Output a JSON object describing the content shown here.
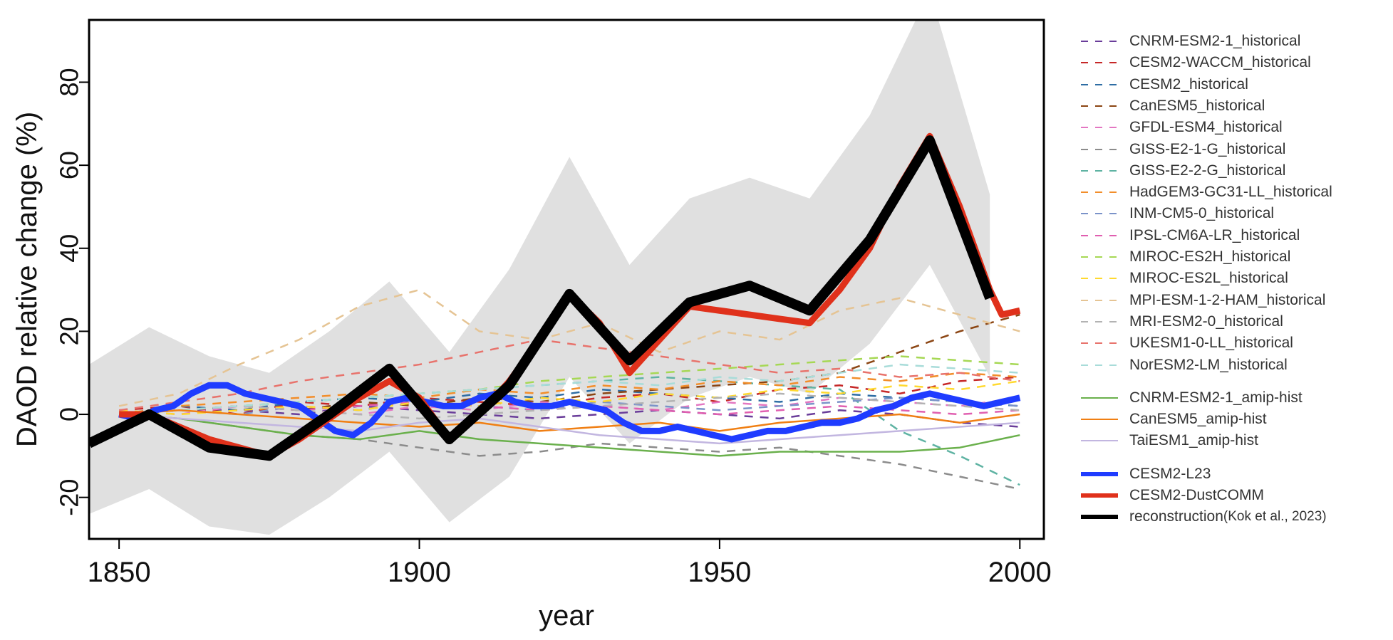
{
  "chart_data": {
    "type": "line",
    "title": "",
    "xlabel": "year",
    "ylabel": "DAOD relative change (%)",
    "xlim": [
      1845,
      2004
    ],
    "ylim": [
      -30,
      95
    ],
    "xticks": [
      1850,
      1900,
      1950,
      2000
    ],
    "yticks": [
      -20,
      0,
      20,
      40,
      60,
      80
    ],
    "grid": false,
    "legend_position": "right",
    "band": {
      "color": "#e0e0e0",
      "x": [
        1845,
        1855,
        1865,
        1875,
        1885,
        1895,
        1905,
        1915,
        1925,
        1935,
        1945,
        1955,
        1965,
        1975,
        1985,
        1995
      ],
      "upper": [
        12,
        21,
        14,
        10,
        20,
        32,
        15,
        35,
        62,
        36,
        52,
        57,
        52,
        72,
        102,
        53
      ],
      "lower": [
        -24,
        -18,
        -27,
        -29,
        -20,
        -9,
        -26,
        -15,
        9,
        -7,
        4,
        9,
        5,
        17,
        36,
        9
      ]
    },
    "series": [
      {
        "name": "CNRM-ESM2-1_historical",
        "color": "#6a3d9a",
        "style": "dashed",
        "x": [
          1850,
          1860,
          1870,
          1880,
          1890,
          1900,
          1910,
          1920,
          1930,
          1940,
          1950,
          1960,
          1970,
          1980,
          1990,
          2000
        ],
        "y": [
          0,
          1,
          1,
          0,
          2,
          1,
          0,
          -1,
          0,
          1,
          0,
          -1,
          1,
          0,
          -2,
          -3
        ]
      },
      {
        "name": "CESM2-WACCM_historical",
        "color": "#c62828",
        "style": "dashed",
        "x": [
          1850,
          1860,
          1870,
          1880,
          1890,
          1900,
          1910,
          1920,
          1930,
          1940,
          1950,
          1960,
          1970,
          1980,
          1990,
          2000
        ],
        "y": [
          1,
          2,
          0,
          3,
          2,
          4,
          3,
          2,
          4,
          5,
          3,
          6,
          7,
          5,
          8,
          9
        ]
      },
      {
        "name": "CESM2_historical",
        "color": "#2e6da4",
        "style": "dashed",
        "x": [
          1850,
          1860,
          1870,
          1880,
          1890,
          1900,
          1910,
          1920,
          1930,
          1940,
          1950,
          1960,
          1970,
          1980,
          1990,
          2000
        ],
        "y": [
          0,
          2,
          1,
          3,
          4,
          3,
          5,
          4,
          6,
          5,
          4,
          3,
          5,
          4,
          3,
          2
        ]
      },
      {
        "name": "CanESM5_historical",
        "color": "#8b4513",
        "style": "dashed",
        "x": [
          1850,
          1860,
          1870,
          1880,
          1890,
          1900,
          1910,
          1920,
          1930,
          1940,
          1950,
          1960,
          1970,
          1980,
          1990,
          2000
        ],
        "y": [
          0,
          1,
          2,
          1,
          3,
          2,
          4,
          3,
          5,
          6,
          7,
          8,
          10,
          15,
          20,
          24
        ]
      },
      {
        "name": "GFDL-ESM4_historical",
        "color": "#e377c2",
        "style": "dashed",
        "x": [
          1850,
          1860,
          1870,
          1880,
          1890,
          1900,
          1910,
          1920,
          1930,
          1940,
          1950,
          1960,
          1970,
          1980,
          1990,
          2000
        ],
        "y": [
          1,
          0,
          2,
          1,
          0,
          2,
          1,
          3,
          2,
          1,
          3,
          2,
          4,
          3,
          2,
          4
        ]
      },
      {
        "name": "GISS-E2-1-G_historical",
        "color": "#8c8c8c",
        "style": "dashed",
        "x": [
          1850,
          1860,
          1870,
          1880,
          1890,
          1900,
          1910,
          1920,
          1930,
          1940,
          1950,
          1960,
          1970,
          1980,
          1990,
          2000
        ],
        "y": [
          0,
          -1,
          -3,
          -5,
          -6,
          -8,
          -10,
          -9,
          -7,
          -8,
          -9,
          -8,
          -10,
          -12,
          -15,
          -18
        ]
      },
      {
        "name": "GISS-E2-2-G_historical",
        "color": "#5fb3a3",
        "style": "dashed",
        "x": [
          1850,
          1860,
          1870,
          1880,
          1890,
          1900,
          1910,
          1920,
          1930,
          1940,
          1950,
          1960,
          1970,
          1980,
          1990,
          2000
        ],
        "y": [
          0,
          1,
          2,
          3,
          4,
          5,
          6,
          7,
          8,
          9,
          8,
          7,
          6,
          -4,
          -10,
          -17
        ]
      },
      {
        "name": "HadGEM3-GC31-LL_historical",
        "color": "#f28e2b",
        "style": "dashed",
        "x": [
          1850,
          1860,
          1870,
          1880,
          1890,
          1900,
          1910,
          1920,
          1930,
          1940,
          1950,
          1960,
          1970,
          1980,
          1990,
          2000
        ],
        "y": [
          0,
          2,
          3,
          4,
          5,
          4,
          6,
          5,
          7,
          6,
          8,
          7,
          9,
          8,
          10,
          9
        ]
      },
      {
        "name": "INM-CM5-0_historical",
        "color": "#7b93c9",
        "style": "dashed",
        "x": [
          1850,
          1860,
          1870,
          1880,
          1890,
          1900,
          1910,
          1920,
          1930,
          1940,
          1950,
          1960,
          1970,
          1980,
          1990,
          2000
        ],
        "y": [
          0,
          1,
          0,
          2,
          1,
          3,
          2,
          1,
          3,
          2,
          1,
          2,
          3,
          4,
          3,
          2
        ]
      },
      {
        "name": "IPSL-CM6A-LR_historical",
        "color": "#e05fb0",
        "style": "dashed",
        "x": [
          1850,
          1860,
          1870,
          1880,
          1890,
          1900,
          1910,
          1920,
          1930,
          1940,
          1950,
          1960,
          1970,
          1980,
          1990,
          2000
        ],
        "y": [
          0,
          1,
          2,
          1,
          2,
          3,
          2,
          1,
          2,
          1,
          0,
          1,
          2,
          1,
          0,
          1
        ]
      },
      {
        "name": "MIROC-ES2H_historical",
        "color": "#a6d854",
        "style": "dashed",
        "x": [
          1850,
          1860,
          1870,
          1880,
          1890,
          1900,
          1910,
          1920,
          1930,
          1940,
          1950,
          1960,
          1970,
          1980,
          1990,
          2000
        ],
        "y": [
          0,
          1,
          2,
          3,
          4,
          5,
          6,
          8,
          9,
          10,
          11,
          12,
          13,
          14,
          13,
          12
        ]
      },
      {
        "name": "MIROC-ES2L_historical",
        "color": "#ffd92f",
        "style": "dashed",
        "x": [
          1850,
          1860,
          1870,
          1880,
          1890,
          1900,
          1910,
          1920,
          1930,
          1940,
          1950,
          1960,
          1970,
          1980,
          1990,
          2000
        ],
        "y": [
          1,
          0,
          1,
          2,
          1,
          3,
          2,
          4,
          3,
          5,
          4,
          6,
          5,
          7,
          6,
          8
        ]
      },
      {
        "name": "MPI-ESM-1-2-HAM_historical",
        "color": "#e5c494",
        "style": "dashed",
        "x": [
          1850,
          1860,
          1870,
          1880,
          1890,
          1900,
          1910,
          1920,
          1930,
          1940,
          1950,
          1960,
          1970,
          1980,
          1990,
          2000
        ],
        "y": [
          2,
          5,
          12,
          18,
          26,
          30,
          20,
          18,
          22,
          15,
          20,
          18,
          25,
          28,
          24,
          20
        ]
      },
      {
        "name": "MRI-ESM2-0_historical",
        "color": "#b3b3b3",
        "style": "dashed",
        "x": [
          1850,
          1860,
          1870,
          1880,
          1890,
          1900,
          1910,
          1920,
          1930,
          1940,
          1950,
          1960,
          1970,
          1980,
          1990,
          2000
        ],
        "y": [
          0,
          1,
          2,
          1,
          0,
          -1,
          0,
          1,
          2,
          3,
          4,
          5,
          4,
          3,
          2,
          1
        ]
      },
      {
        "name": "UKESM1-0-LL_historical",
        "color": "#e8736c",
        "style": "dashed",
        "x": [
          1850,
          1860,
          1870,
          1880,
          1890,
          1900,
          1910,
          1920,
          1930,
          1940,
          1950,
          1960,
          1970,
          1980,
          1990,
          2000
        ],
        "y": [
          1,
          3,
          5,
          8,
          10,
          12,
          15,
          18,
          16,
          14,
          12,
          10,
          11,
          9,
          10,
          8
        ]
      },
      {
        "name": "NorESM2-LM_historical",
        "color": "#a8dcd9",
        "style": "dashed",
        "x": [
          1850,
          1860,
          1870,
          1880,
          1890,
          1900,
          1910,
          1920,
          1930,
          1940,
          1950,
          1960,
          1970,
          1980,
          1990,
          2000
        ],
        "y": [
          0,
          1,
          2,
          3,
          4,
          5,
          6,
          7,
          8,
          7,
          9,
          8,
          10,
          12,
          11,
          10
        ]
      },
      {
        "name": "CNRM-ESM2-1_amip-hist",
        "color": "#6ab04c",
        "style": "solid",
        "x": [
          1850,
          1860,
          1870,
          1880,
          1890,
          1900,
          1910,
          1920,
          1930,
          1940,
          1950,
          1960,
          1970,
          1980,
          1990,
          2000
        ],
        "y": [
          0,
          -1,
          -3,
          -5,
          -6,
          -4,
          -6,
          -7,
          -8,
          -9,
          -10,
          -9,
          -9,
          -9,
          -8,
          -5
        ]
      },
      {
        "name": "CanESM5_amip-hist",
        "color": "#f07f13",
        "style": "solid",
        "x": [
          1850,
          1860,
          1870,
          1880,
          1890,
          1900,
          1910,
          1920,
          1930,
          1940,
          1950,
          1960,
          1970,
          1980,
          1990,
          2000
        ],
        "y": [
          0,
          1,
          0,
          -1,
          -2,
          -3,
          -2,
          -4,
          -3,
          -2,
          -4,
          -2,
          -1,
          0,
          -2,
          0
        ]
      },
      {
        "name": "TaiESM1_amip-hist",
        "color": "#c2b6e0",
        "style": "solid",
        "x": [
          1850,
          1860,
          1870,
          1880,
          1890,
          1900,
          1910,
          1920,
          1930,
          1940,
          1950,
          1960,
          1970,
          1980,
          1990,
          2000
        ],
        "y": [
          0,
          -1,
          -2,
          -3,
          -4,
          -2,
          -1,
          -3,
          -5,
          -6,
          -7,
          -6,
          -5,
          -4,
          -3,
          -2
        ]
      },
      {
        "name": "CESM2-L23",
        "color": "#1f3cff",
        "style": "thick",
        "x": [
          1850,
          1853,
          1856,
          1859,
          1862,
          1865,
          1868,
          1871,
          1874,
          1877,
          1880,
          1883,
          1886,
          1889,
          1892,
          1895,
          1898,
          1901,
          1904,
          1907,
          1910,
          1913,
          1916,
          1919,
          1922,
          1925,
          1928,
          1931,
          1934,
          1937,
          1940,
          1943,
          1946,
          1949,
          1952,
          1955,
          1958,
          1961,
          1964,
          1967,
          1970,
          1973,
          1976,
          1979,
          1982,
          1985,
          1988,
          1991,
          1994,
          1997,
          2000
        ],
        "y": [
          0,
          -1,
          1,
          2,
          5,
          7,
          7,
          5,
          4,
          3,
          2,
          -1,
          -4,
          -5,
          -2,
          3,
          4,
          3,
          2,
          2,
          4,
          5,
          3,
          2,
          2,
          3,
          2,
          1,
          -2,
          -4,
          -4,
          -3,
          -4,
          -5,
          -6,
          -5,
          -4,
          -4,
          -3,
          -2,
          -2,
          -1,
          1,
          2,
          4,
          5,
          4,
          3,
          2,
          3,
          4
        ]
      },
      {
        "name": "CESM2-DustCOMM",
        "color": "#e0311b",
        "style": "thick",
        "x": [
          1850,
          1855,
          1860,
          1865,
          1870,
          1875,
          1880,
          1885,
          1890,
          1895,
          1900,
          1905,
          1910,
          1915,
          1920,
          1925,
          1930,
          1935,
          1940,
          1945,
          1950,
          1955,
          1960,
          1965,
          1970,
          1975,
          1980,
          1985,
          1990,
          1995,
          1997,
          2000
        ],
        "y": [
          0,
          0,
          -3,
          -6,
          -8,
          -10,
          -6,
          -1,
          4,
          8,
          4,
          -6,
          0,
          8,
          18,
          29,
          22,
          10,
          18,
          26,
          25,
          24,
          23,
          22,
          30,
          40,
          55,
          67,
          50,
          30,
          24,
          25
        ]
      },
      {
        "name": "reconstruction",
        "color": "#000000",
        "style": "thick",
        "x": [
          1845,
          1855,
          1865,
          1875,
          1885,
          1895,
          1905,
          1915,
          1925,
          1935,
          1945,
          1955,
          1965,
          1975,
          1985,
          1995
        ],
        "y": [
          -7,
          0,
          -8,
          -10,
          0,
          11,
          -6,
          7,
          29,
          13,
          27,
          31,
          25,
          42,
          66,
          28
        ]
      }
    ]
  },
  "legend": {
    "entries": [
      {
        "label": "CNRM-ESM2-1_historical",
        "color": "#6a3d9a",
        "style": "dashed"
      },
      {
        "label": "CESM2-WACCM_historical",
        "color": "#c62828",
        "style": "dashed"
      },
      {
        "label": "CESM2_historical",
        "color": "#2e6da4",
        "style": "dashed"
      },
      {
        "label": "CanESM5_historical",
        "color": "#8b4513",
        "style": "dashed"
      },
      {
        "label": "GFDL-ESM4_historical",
        "color": "#e377c2",
        "style": "dashed"
      },
      {
        "label": "GISS-E2-1-G_historical",
        "color": "#8c8c8c",
        "style": "dashed"
      },
      {
        "label": "GISS-E2-2-G_historical",
        "color": "#5fb3a3",
        "style": "dashed"
      },
      {
        "label": "HadGEM3-GC31-LL_historical",
        "color": "#f28e2b",
        "style": "dashed"
      },
      {
        "label": "INM-CM5-0_historical",
        "color": "#7b93c9",
        "style": "dashed"
      },
      {
        "label": "IPSL-CM6A-LR_historical",
        "color": "#e05fb0",
        "style": "dashed"
      },
      {
        "label": "MIROC-ES2H_historical",
        "color": "#a6d854",
        "style": "dashed"
      },
      {
        "label": "MIROC-ES2L_historical",
        "color": "#ffd92f",
        "style": "dashed"
      },
      {
        "label": "MPI-ESM-1-2-HAM_historical",
        "color": "#e5c494",
        "style": "dashed"
      },
      {
        "label": "MRI-ESM2-0_historical",
        "color": "#b3b3b3",
        "style": "dashed"
      },
      {
        "label": "UKESM1-0-LL_historical",
        "color": "#e8736c",
        "style": "dashed"
      },
      {
        "label": "NorESM2-LM_historical",
        "color": "#a8dcd9",
        "style": "dashed"
      },
      {
        "label": "CNRM-ESM2-1_amip-hist",
        "color": "#6ab04c",
        "style": "solid"
      },
      {
        "label": "CanESM5_amip-hist",
        "color": "#f07f13",
        "style": "solid"
      },
      {
        "label": "TaiESM1_amip-hist",
        "color": "#c2b6e0",
        "style": "solid"
      },
      {
        "label": "CESM2-L23",
        "color": "#1f3cff",
        "style": "thick"
      },
      {
        "label": "CESM2-DustCOMM",
        "color": "#e0311b",
        "style": "thick"
      },
      {
        "label": "reconstruction ",
        "citation": "(Kok et al., 2023)",
        "color": "#000000",
        "style": "thick"
      }
    ]
  }
}
